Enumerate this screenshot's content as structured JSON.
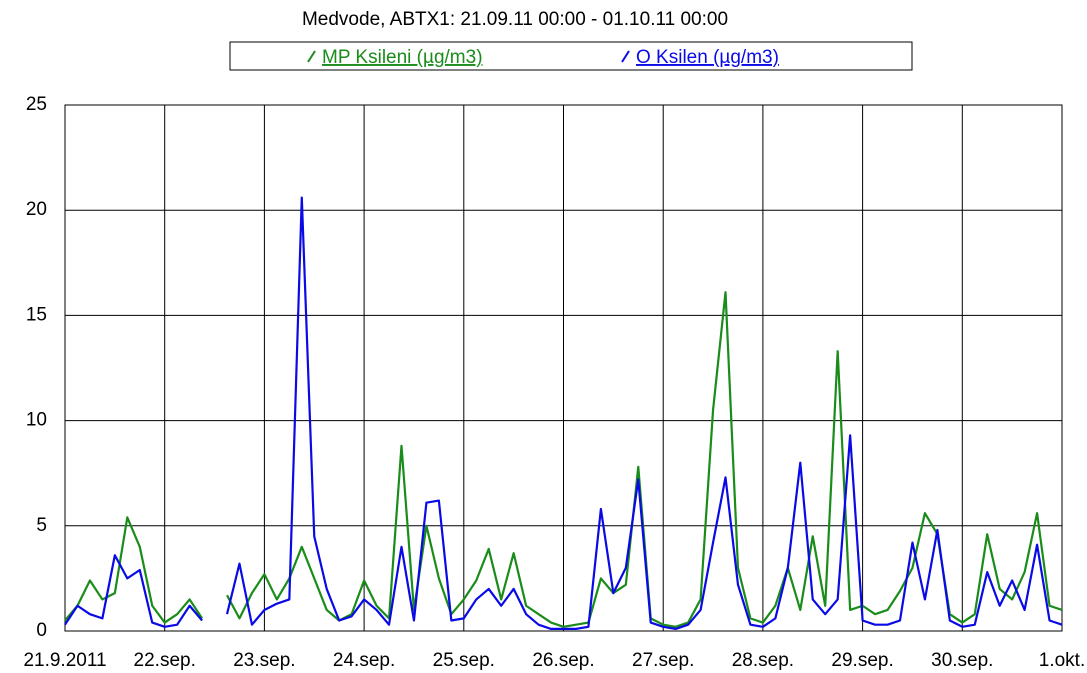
{
  "chart_data": {
    "type": "line",
    "title": "Medvode, ABTX1: 21.09.11 00:00 - 01.10.11 00:00",
    "x": [
      0,
      3,
      6,
      9,
      12,
      15,
      18,
      21,
      24,
      27,
      30,
      33,
      36,
      39,
      42,
      45,
      48,
      51,
      54,
      57,
      60,
      63,
      66,
      69,
      72,
      75,
      78,
      81,
      84,
      87,
      90,
      93,
      96,
      99,
      102,
      105,
      108,
      111,
      114,
      117,
      120,
      123,
      126,
      129,
      132,
      135,
      138,
      141,
      144,
      147,
      150,
      153,
      156,
      159,
      162,
      165,
      168,
      171,
      174,
      177,
      180,
      183,
      186,
      189,
      192,
      195,
      198,
      201,
      204,
      207,
      210,
      213,
      216,
      219,
      222,
      225,
      228,
      231,
      234,
      237,
      240
    ],
    "series": [
      {
        "name": "MP Ksileni (µg/m3)",
        "color": "#1a8c1a",
        "values": [
          0.5,
          1.2,
          2.4,
          1.5,
          1.8,
          5.4,
          4.0,
          1.2,
          0.4,
          0.8,
          1.5,
          0.6,
          null,
          1.7,
          0.6,
          1.8,
          2.7,
          1.5,
          2.5,
          4.0,
          2.5,
          1.0,
          0.5,
          0.8,
          2.4,
          1.2,
          0.6,
          8.8,
          1.0,
          5.0,
          2.5,
          0.8,
          1.5,
          2.4,
          3.9,
          1.5,
          3.7,
          1.2,
          0.8,
          0.4,
          0.2,
          0.3,
          0.4,
          2.5,
          1.8,
          2.2,
          7.8,
          0.6,
          0.3,
          0.2,
          0.4,
          1.5,
          10.5,
          16.1,
          3.0,
          0.6,
          0.4,
          1.2,
          3.0,
          1.0,
          4.5,
          1.2,
          13.3,
          1.0,
          1.2,
          0.8,
          1.0,
          1.9,
          3.0,
          5.6,
          4.6,
          0.8,
          0.4,
          0.8,
          4.6,
          2.0,
          1.5,
          2.8,
          5.6,
          1.2,
          1.0
        ]
      },
      {
        "name": "O Ksilen (µg/m3)",
        "color": "#0a0ae6",
        "values": [
          0.3,
          1.2,
          0.8,
          0.6,
          3.6,
          2.5,
          2.9,
          0.4,
          0.2,
          0.3,
          1.2,
          0.5,
          null,
          0.8,
          3.2,
          0.3,
          1.0,
          1.3,
          1.5,
          20.6,
          4.5,
          2.0,
          0.5,
          0.7,
          1.5,
          1.0,
          0.3,
          4.0,
          0.5,
          6.1,
          6.2,
          0.5,
          0.6,
          1.5,
          2.0,
          1.2,
          2.0,
          0.8,
          0.3,
          0.1,
          0.1,
          0.1,
          0.2,
          5.8,
          1.8,
          3.0,
          7.2,
          0.4,
          0.2,
          0.1,
          0.3,
          1.0,
          4.2,
          7.3,
          2.2,
          0.3,
          0.2,
          0.6,
          3.0,
          8.0,
          1.5,
          0.8,
          1.5,
          9.3,
          0.5,
          0.3,
          0.3,
          0.5,
          4.2,
          1.5,
          4.8,
          0.5,
          0.2,
          0.3,
          2.8,
          1.2,
          2.4,
          1.0,
          4.1,
          0.5,
          0.3
        ]
      }
    ],
    "xlim": [
      0,
      240
    ],
    "xticks": [
      {
        "value": 0,
        "label": "21.9.2011"
      },
      {
        "value": 24,
        "label": "22.sep."
      },
      {
        "value": 48,
        "label": "23.sep."
      },
      {
        "value": 72,
        "label": "24.sep."
      },
      {
        "value": 96,
        "label": "25.sep."
      },
      {
        "value": 120,
        "label": "26.sep."
      },
      {
        "value": 144,
        "label": "27.sep."
      },
      {
        "value": 168,
        "label": "28.sep."
      },
      {
        "value": 192,
        "label": "29.sep."
      },
      {
        "value": 216,
        "label": "30.sep."
      },
      {
        "value": 240,
        "label": "1.okt."
      }
    ],
    "ylim": [
      0,
      25
    ],
    "yticks": [
      0,
      5,
      10,
      15,
      20,
      25
    ],
    "grid": true
  }
}
